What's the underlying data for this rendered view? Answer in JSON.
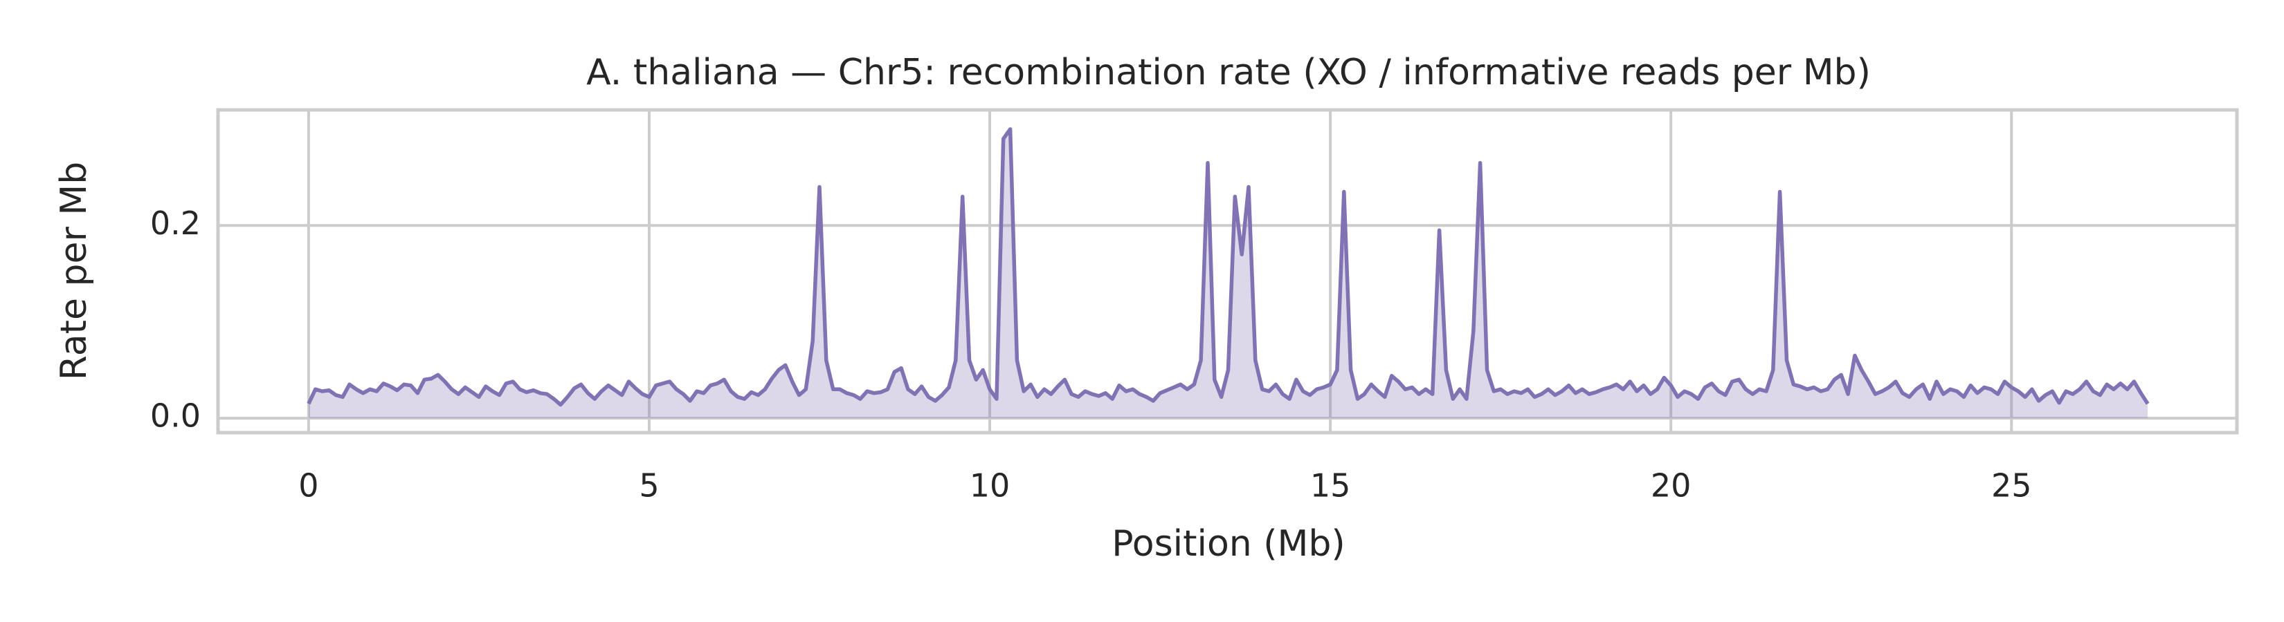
{
  "chart_data": {
    "type": "area_line",
    "title": "A. thaliana — Chr5: recombination rate (XO / informative reads per Mb)",
    "xlabel": "Position (Mb)",
    "ylabel": "Rate per Mb",
    "color": "#8172b3",
    "fill_opacity": 0.28,
    "grid": true,
    "xlim": [
      -1.33,
      28.31
    ],
    "xticks": [
      0,
      5,
      10,
      15,
      20,
      25
    ],
    "ylim": [
      -0.015,
      0.32
    ],
    "yticks": [
      {
        "value": 0,
        "label": "0.0"
      },
      0.2
    ],
    "x": [
      0,
      0.1,
      0.2,
      0.3,
      0.4,
      0.5,
      0.6,
      0.7,
      0.8,
      0.9,
      1,
      1.1,
      1.2,
      1.3,
      1.4,
      1.5,
      1.6,
      1.7,
      1.8,
      1.9,
      2,
      2.1,
      2.2,
      2.3,
      2.4,
      2.5,
      2.6,
      2.7,
      2.8,
      2.9,
      3,
      3.1,
      3.2,
      3.3,
      3.4,
      3.5,
      3.6,
      3.7,
      3.8,
      3.9,
      4,
      4.1,
      4.2,
      4.3,
      4.4,
      4.5,
      4.6,
      4.7,
      4.8,
      4.9,
      5,
      5.1,
      5.2,
      5.3,
      5.4,
      5.5,
      5.6,
      5.7,
      5.8,
      5.9,
      6,
      6.1,
      6.2,
      6.3,
      6.4,
      6.5,
      6.6,
      6.7,
      6.8,
      6.9,
      7,
      7.1,
      7.2,
      7.3,
      7.4,
      7.5,
      7.6,
      7.7,
      7.8,
      7.9,
      8,
      8.1,
      8.2,
      8.3,
      8.4,
      8.5,
      8.6,
      8.7,
      8.8,
      8.9,
      9,
      9.1,
      9.2,
      9.3,
      9.4,
      9.5,
      9.6,
      9.7,
      9.8,
      9.9,
      10,
      10.1,
      10.2,
      10.3,
      10.4,
      10.5,
      10.6,
      10.7,
      10.8,
      10.9,
      11,
      11.1,
      11.2,
      11.3,
      11.4,
      11.5,
      11.6,
      11.7,
      11.8,
      11.9,
      12,
      12.1,
      12.2,
      12.3,
      12.4,
      12.5,
      12.6,
      12.7,
      12.8,
      12.9,
      13,
      13.1,
      13.2,
      13.3,
      13.4,
      13.5,
      13.6,
      13.7,
      13.8,
      13.9,
      14,
      14.1,
      14.2,
      14.3,
      14.4,
      14.5,
      14.6,
      14.7,
      14.8,
      14.9,
      15,
      15.1,
      15.2,
      15.3,
      15.4,
      15.5,
      15.6,
      15.7,
      15.8,
      15.9,
      16,
      16.1,
      16.2,
      16.3,
      16.4,
      16.5,
      16.6,
      16.7,
      16.8,
      16.9,
      17,
      17.1,
      17.2,
      17.3,
      17.4,
      17.5,
      17.6,
      17.7,
      17.8,
      17.9,
      18,
      18.1,
      18.2,
      18.3,
      18.4,
      18.5,
      18.6,
      18.7,
      18.8,
      18.9,
      19,
      19.1,
      19.2,
      19.3,
      19.4,
      19.5,
      19.6,
      19.7,
      19.8,
      19.9,
      20,
      20.1,
      20.2,
      20.3,
      20.4,
      20.5,
      20.6,
      20.7,
      20.8,
      20.9,
      21,
      21.1,
      21.2,
      21.3,
      21.4,
      21.5,
      21.6,
      21.7,
      21.8,
      21.9,
      22,
      22.1,
      22.2,
      22.3,
      22.4,
      22.5,
      22.6,
      22.7,
      22.8,
      22.9,
      23,
      23.1,
      23.2,
      23.3,
      23.4,
      23.5,
      23.6,
      23.7,
      23.8,
      23.9,
      24,
      24.1,
      24.2,
      24.3,
      24.4,
      24.5,
      24.6,
      24.7,
      24.8,
      24.9,
      25,
      25.1,
      25.2,
      25.3,
      25.4,
      25.5,
      25.6,
      25.7,
      25.8,
      25.9,
      26,
      26.1,
      26.2,
      26.3,
      26.4,
      26.5,
      26.6,
      26.7,
      26.8,
      26.9,
      27
    ],
    "values": [
      0.015,
      0.03,
      0.028,
      0.029,
      0.024,
      0.022,
      0.035,
      0.03,
      0.026,
      0.03,
      0.028,
      0.036,
      0.033,
      0.029,
      0.035,
      0.034,
      0.026,
      0.04,
      0.041,
      0.045,
      0.038,
      0.03,
      0.025,
      0.032,
      0.027,
      0.022,
      0.033,
      0.028,
      0.024,
      0.036,
      0.038,
      0.03,
      0.027,
      0.029,
      0.026,
      0.025,
      0.02,
      0.014,
      0.022,
      0.031,
      0.035,
      0.026,
      0.02,
      0.028,
      0.034,
      0.029,
      0.024,
      0.038,
      0.031,
      0.025,
      0.022,
      0.034,
      0.036,
      0.038,
      0.03,
      0.025,
      0.018,
      0.028,
      0.026,
      0.034,
      0.036,
      0.04,
      0.028,
      0.022,
      0.02,
      0.027,
      0.024,
      0.03,
      0.041,
      0.05,
      0.055,
      0.038,
      0.024,
      0.03,
      0.08,
      0.24,
      0.06,
      0.03,
      0.03,
      0.026,
      0.024,
      0.02,
      0.028,
      0.026,
      0.027,
      0.03,
      0.048,
      0.052,
      0.03,
      0.025,
      0.033,
      0.022,
      0.018,
      0.024,
      0.032,
      0.06,
      0.23,
      0.06,
      0.04,
      0.05,
      0.03,
      0.02,
      0.29,
      0.3,
      0.06,
      0.028,
      0.035,
      0.022,
      0.03,
      0.025,
      0.033,
      0.04,
      0.025,
      0.022,
      0.028,
      0.025,
      0.023,
      0.026,
      0.02,
      0.034,
      0.028,
      0.03,
      0.025,
      0.022,
      0.018,
      0.026,
      0.029,
      0.032,
      0.035,
      0.03,
      0.035,
      0.06,
      0.265,
      0.04,
      0.022,
      0.05,
      0.23,
      0.17,
      0.24,
      0.06,
      0.03,
      0.028,
      0.035,
      0.025,
      0.02,
      0.04,
      0.028,
      0.024,
      0.03,
      0.032,
      0.035,
      0.05,
      0.235,
      0.05,
      0.02,
      0.025,
      0.035,
      0.028,
      0.022,
      0.044,
      0.038,
      0.03,
      0.032,
      0.025,
      0.03,
      0.025,
      0.195,
      0.05,
      0.02,
      0.03,
      0.02,
      0.09,
      0.265,
      0.05,
      0.028,
      0.03,
      0.025,
      0.028,
      0.026,
      0.03,
      0.022,
      0.025,
      0.03,
      0.024,
      0.028,
      0.034,
      0.026,
      0.03,
      0.025,
      0.027,
      0.03,
      0.032,
      0.035,
      0.03,
      0.038,
      0.028,
      0.034,
      0.025,
      0.03,
      0.042,
      0.034,
      0.022,
      0.028,
      0.025,
      0.02,
      0.032,
      0.036,
      0.028,
      0.024,
      0.038,
      0.04,
      0.03,
      0.025,
      0.03,
      0.028,
      0.05,
      0.235,
      0.06,
      0.035,
      0.033,
      0.03,
      0.032,
      0.028,
      0.03,
      0.04,
      0.045,
      0.025,
      0.065,
      0.05,
      0.038,
      0.025,
      0.028,
      0.032,
      0.038,
      0.026,
      0.022,
      0.03,
      0.035,
      0.02,
      0.038,
      0.025,
      0.03,
      0.028,
      0.022,
      0.034,
      0.026,
      0.032,
      0.03,
      0.025,
      0.038,
      0.032,
      0.028,
      0.022,
      0.03,
      0.018,
      0.024,
      0.028,
      0.016,
      0.028,
      0.025,
      0.03,
      0.038,
      0.028,
      0.024,
      0.035,
      0.03,
      0.036,
      0.03,
      0.038,
      0.026,
      0.015
    ]
  }
}
